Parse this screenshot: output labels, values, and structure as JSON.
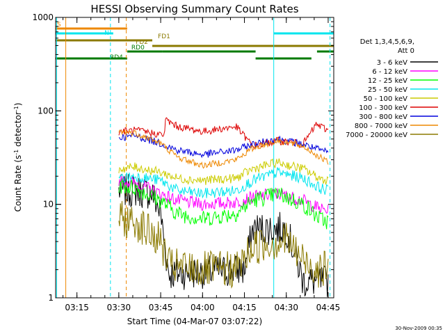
{
  "chart_data": {
    "type": "line",
    "title": "HESSI Observing Summary Count Rates",
    "xlabel": "Start Time (04-Mar-07 03:07:22)",
    "ylabel": "Count Rate (s⁻¹ detector⁻¹)",
    "ylabel_parts": {
      "main": "Count Rate (s",
      "sup1": "-1",
      "mid": " detector",
      "sup2": "-1",
      "end": ")"
    },
    "yscale": "log",
    "ylim": [
      1,
      1000
    ],
    "xlim": [
      "03:07:22",
      "04:47:00"
    ],
    "yticks": [
      "1",
      "10",
      "100",
      "1000"
    ],
    "xticks": [
      "03:15",
      "03:30",
      "03:45",
      "04:00",
      "04:15",
      "04:30",
      "04:45"
    ],
    "grid": false,
    "legend_placement": "right",
    "legend_title": [
      "Det 1,3,4,5,6,9,",
      "Att 0"
    ],
    "footer": "30-Nov-2009 00:35",
    "vertical_markers": [
      {
        "time": "03:07:44",
        "style": "solid",
        "color": "#00e5ee"
      },
      {
        "time": "03:11:00",
        "style": "solid",
        "color": "#ee8800"
      },
      {
        "time": "03:27:00",
        "style": "dashed",
        "color": "#00e5ee"
      },
      {
        "time": "03:32:40",
        "style": "dashed",
        "color": "#ee8800"
      },
      {
        "time": "04:25:30",
        "style": "solid",
        "color": "#00e5ee"
      },
      {
        "time": "04:45:40",
        "style": "dashed",
        "color": "#00e5ee"
      }
    ],
    "flag_bars": [
      {
        "label": "S",
        "color": "#ee8800",
        "segments": [
          [
            "03:07:22",
            "03:33:00"
          ]
        ]
      },
      {
        "label": "N",
        "color": "#00e5ee",
        "segments": [
          [
            "03:07:22",
            "03:28:00"
          ],
          [
            "04:25:30",
            "04:47:00"
          ]
        ]
      },
      {
        "label": "FD1",
        "color": "#8b7a00",
        "segments": [
          [
            "03:07:22",
            "03:42:00"
          ]
        ]
      },
      {
        "label": "FD2",
        "color": "#8b7a00",
        "segments": [
          [
            "03:42:00",
            "04:47:00"
          ]
        ]
      },
      {
        "label": "RD0",
        "color": "#007a00",
        "segments": [
          [
            "03:33:00",
            "03:45:30"
          ],
          [
            "03:45:30",
            "04:19:00"
          ],
          [
            "04:41:00",
            "04:47:00"
          ]
        ]
      },
      {
        "label": "RD4",
        "color": "#007a00",
        "segments": [
          [
            "03:07:22",
            "03:33:00"
          ],
          [
            "04:19:00",
            "04:39:00"
          ]
        ]
      }
    ],
    "series": [
      {
        "name": "3 - 6 keV",
        "color": "#000000",
        "values": [
          [
            3.5,
            14
          ],
          [
            3.6,
            14
          ],
          [
            3.7,
            13
          ],
          [
            3.75,
            8
          ],
          [
            3.78,
            3
          ],
          [
            3.8,
            1.8
          ],
          [
            4.25,
            2.0
          ],
          [
            4.3,
            5.5
          ],
          [
            4.5,
            5.5
          ],
          [
            4.55,
            3
          ],
          [
            4.6,
            1.5
          ],
          [
            4.75,
            1.5
          ]
        ]
      },
      {
        "name": "6 - 12 keV",
        "color": "#ff00ff",
        "values": [
          [
            3.5,
            18
          ],
          [
            3.6,
            17
          ],
          [
            3.75,
            13
          ],
          [
            3.85,
            11
          ],
          [
            4.0,
            10
          ],
          [
            4.2,
            10.5
          ],
          [
            4.3,
            12
          ],
          [
            4.45,
            13
          ],
          [
            4.6,
            11
          ],
          [
            4.7,
            9
          ],
          [
            4.75,
            8.5
          ]
        ]
      },
      {
        "name": "12 - 25 keV",
        "color": "#00ff00",
        "values": [
          [
            3.5,
            16
          ],
          [
            3.6,
            15
          ],
          [
            3.75,
            11
          ],
          [
            3.85,
            8
          ],
          [
            4.0,
            7
          ],
          [
            4.2,
            8
          ],
          [
            4.3,
            11
          ],
          [
            4.45,
            13
          ],
          [
            4.6,
            10
          ],
          [
            4.7,
            7
          ],
          [
            4.75,
            6.5
          ]
        ]
      },
      {
        "name": "25 - 50 keV",
        "color": "#00e5ee",
        "values": [
          [
            3.5,
            19
          ],
          [
            3.6,
            20
          ],
          [
            3.75,
            18
          ],
          [
            3.85,
            14
          ],
          [
            4.0,
            13
          ],
          [
            4.2,
            14
          ],
          [
            4.3,
            18
          ],
          [
            4.45,
            22
          ],
          [
            4.6,
            19
          ],
          [
            4.7,
            15
          ],
          [
            4.75,
            14
          ]
        ]
      },
      {
        "name": "50 - 100 keV",
        "color": "#cccc00",
        "values": [
          [
            3.5,
            24
          ],
          [
            3.6,
            25
          ],
          [
            3.75,
            22
          ],
          [
            3.85,
            19
          ],
          [
            4.0,
            18
          ],
          [
            4.2,
            19
          ],
          [
            4.3,
            24
          ],
          [
            4.45,
            28
          ],
          [
            4.6,
            24
          ],
          [
            4.7,
            19
          ],
          [
            4.75,
            18
          ]
        ]
      },
      {
        "name": "100 - 300 keV",
        "color": "#dd0000",
        "values": [
          [
            3.5,
            60
          ],
          [
            3.6,
            62
          ],
          [
            3.77,
            55
          ],
          [
            3.78,
            80
          ],
          [
            3.85,
            68
          ],
          [
            4.0,
            60
          ],
          [
            4.2,
            68
          ],
          [
            4.3,
            42
          ],
          [
            4.45,
            48
          ],
          [
            4.6,
            44
          ],
          [
            4.68,
            72
          ],
          [
            4.75,
            62
          ]
        ]
      },
      {
        "name": "300 - 800 keV",
        "color": "#0000dd",
        "values": [
          [
            3.5,
            52
          ],
          [
            3.6,
            54
          ],
          [
            3.75,
            45
          ],
          [
            3.85,
            38
          ],
          [
            4.0,
            34
          ],
          [
            4.2,
            38
          ],
          [
            4.3,
            44
          ],
          [
            4.45,
            50
          ],
          [
            4.6,
            44
          ],
          [
            4.7,
            38
          ],
          [
            4.75,
            36
          ]
        ]
      },
      {
        "name": "800 - 7000 keV",
        "color": "#ee8800",
        "values": [
          [
            3.5,
            60
          ],
          [
            3.6,
            58
          ],
          [
            3.75,
            45
          ],
          [
            3.85,
            32
          ],
          [
            4.0,
            26
          ],
          [
            4.2,
            30
          ],
          [
            4.3,
            40
          ],
          [
            4.45,
            48
          ],
          [
            4.6,
            42
          ],
          [
            4.7,
            32
          ],
          [
            4.75,
            28
          ]
        ]
      },
      {
        "name": "7000 - 20000 keV",
        "color": "#8b7a00",
        "values": [
          [
            3.5,
            7
          ],
          [
            3.6,
            6.5
          ],
          [
            3.75,
            4
          ],
          [
            3.8,
            2.2
          ],
          [
            4.0,
            2.0
          ],
          [
            4.2,
            2.0
          ],
          [
            4.3,
            3.5
          ],
          [
            4.5,
            4.2
          ],
          [
            4.6,
            2.5
          ],
          [
            4.7,
            2.0
          ],
          [
            4.75,
            2.0
          ]
        ]
      }
    ]
  }
}
